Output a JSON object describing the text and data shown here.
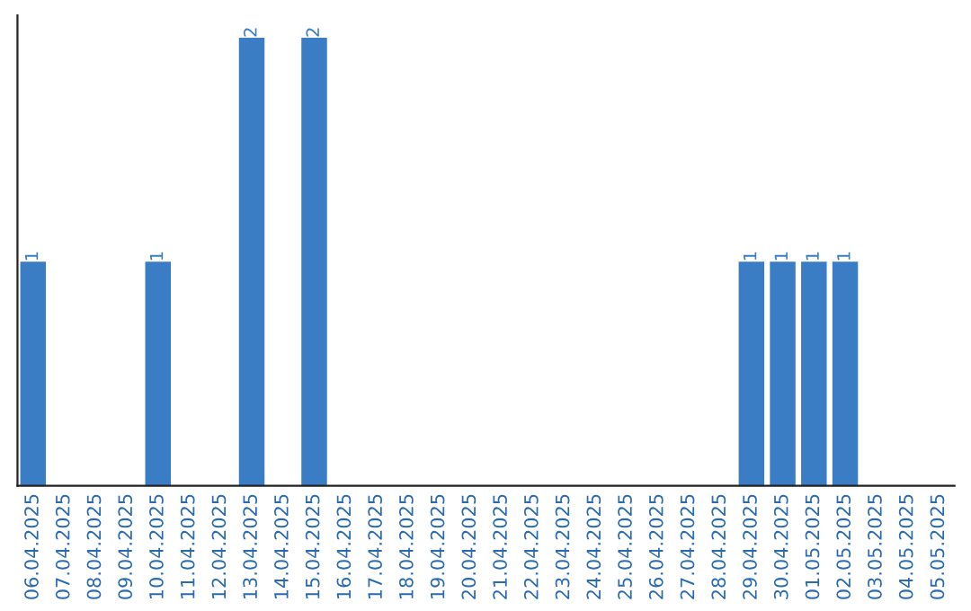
{
  "chart_data": {
    "type": "bar",
    "categories": [
      "06.04.2025",
      "07.04.2025",
      "08.04.2025",
      "09.04.2025",
      "10.04.2025",
      "11.04.2025",
      "12.04.2025",
      "13.04.2025",
      "14.04.2025",
      "15.04.2025",
      "16.04.2025",
      "17.04.2025",
      "18.04.2025",
      "19.04.2025",
      "20.04.2025",
      "21.04.2025",
      "22.04.2025",
      "23.04.2025",
      "24.04.2025",
      "25.04.2025",
      "26.04.2025",
      "27.04.2025",
      "28.04.2025",
      "29.04.2025",
      "30.04.2025",
      "01.05.2025",
      "02.05.2025",
      "03.05.2025",
      "04.05.2025",
      "05.05.2025"
    ],
    "values": [
      1,
      0,
      0,
      0,
      1,
      0,
      0,
      2,
      0,
      2,
      0,
      0,
      0,
      0,
      0,
      0,
      0,
      0,
      0,
      0,
      0,
      0,
      0,
      1,
      1,
      1,
      1,
      0,
      0,
      0
    ],
    "value_labels": [
      "1",
      null,
      null,
      null,
      "1",
      null,
      null,
      "2",
      null,
      "2",
      null,
      null,
      null,
      null,
      null,
      null,
      null,
      null,
      null,
      null,
      null,
      null,
      null,
      "1",
      "1",
      "1",
      "1",
      null,
      null,
      null
    ],
    "color": "#3b7dc4",
    "tick_labels": "x",
    "grid": false,
    "legend": false
  }
}
